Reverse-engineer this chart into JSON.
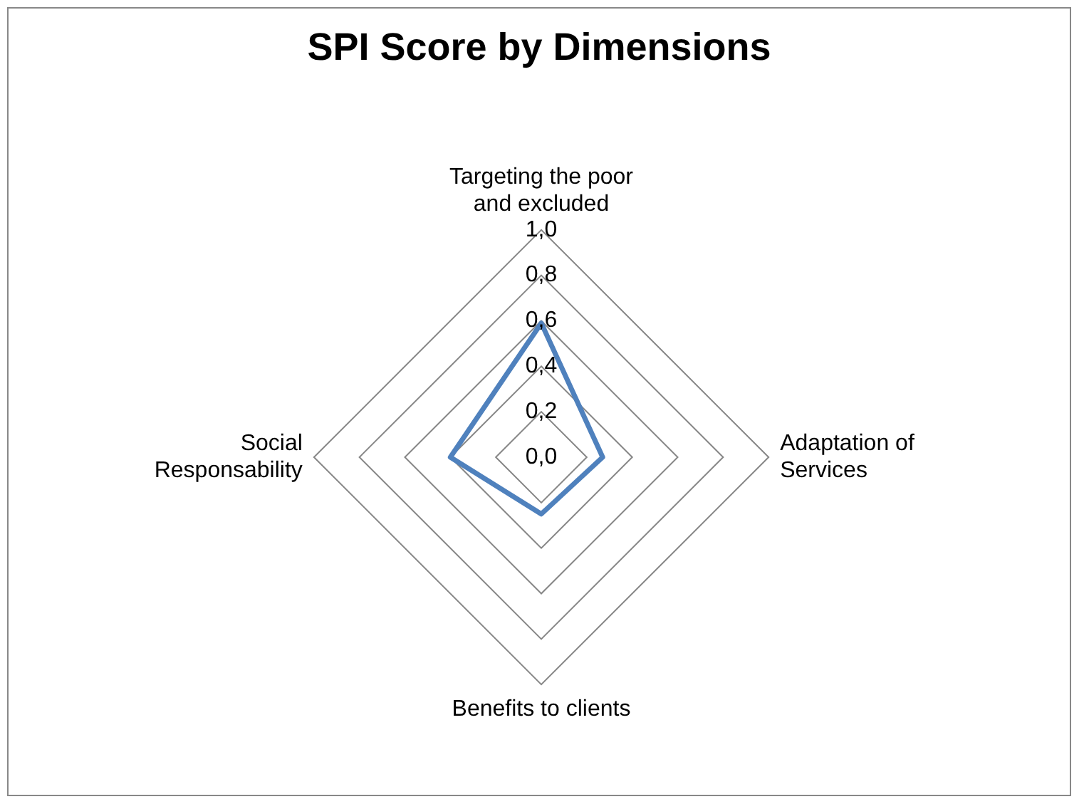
{
  "chart_data": {
    "type": "radar",
    "title": "SPI Score by Dimensions",
    "categories": [
      "Targeting the poor and excluded",
      "Adaptation of Services",
      "Benefits to clients",
      "Social Responsability"
    ],
    "series": [
      {
        "color": "#4f81bd",
        "values": [
          0.59,
          0.27,
          0.25,
          0.4
        ]
      }
    ],
    "ylim": [
      0,
      1
    ],
    "yticks": [
      {
        "value": 0,
        "label": "0,0"
      },
      {
        "value": 0.2,
        "label": "0,2"
      },
      {
        "value": 0.4,
        "label": "0,4"
      },
      {
        "value": 0.6,
        "label": "0,6"
      },
      {
        "value": 0.8,
        "label": "0,8"
      },
      {
        "value": 1,
        "label": "1,0"
      }
    ],
    "grid": true,
    "legend": false,
    "marker": "none",
    "line_style": "solid"
  }
}
